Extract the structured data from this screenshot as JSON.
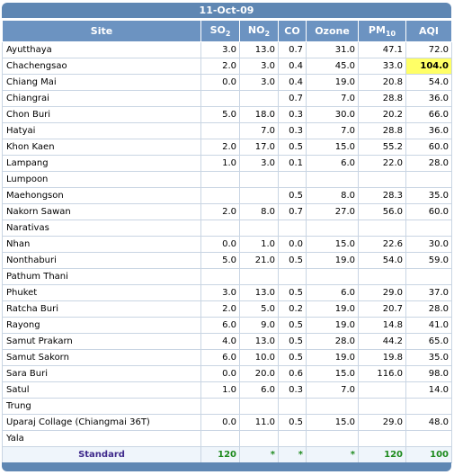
{
  "title": "11-Oct-09",
  "headers": {
    "site": "Site",
    "so2_main": "SO",
    "so2_sub": "2",
    "no2_main": "NO",
    "no2_sub": "2",
    "co": "CO",
    "ozone": "Ozone",
    "pm10_main": "PM",
    "pm10_sub": "10",
    "aqi": "AQI"
  },
  "highlight_color": "#ffff66",
  "rows": [
    {
      "site": "Ayutthaya",
      "so2": "3.0",
      "no2": "13.0",
      "co": "0.7",
      "ozone": "31.0",
      "pm10": "47.1",
      "aqi": "72.0"
    },
    {
      "site": "Chachengsao",
      "so2": "2.0",
      "no2": "3.0",
      "co": "0.4",
      "ozone": "45.0",
      "pm10": "33.0",
      "aqi": "104.0",
      "aqi_highlight": true
    },
    {
      "site": "Chiang Mai",
      "so2": "0.0",
      "no2": "3.0",
      "co": "0.4",
      "ozone": "19.0",
      "pm10": "20.8",
      "aqi": "54.0"
    },
    {
      "site": "Chiangrai",
      "so2": "",
      "no2": "",
      "co": "0.7",
      "ozone": "7.0",
      "pm10": "28.8",
      "aqi": "36.0"
    },
    {
      "site": "Chon Buri",
      "so2": "5.0",
      "no2": "18.0",
      "co": "0.3",
      "ozone": "30.0",
      "pm10": "20.2",
      "aqi": "66.0"
    },
    {
      "site": "Hatyai",
      "so2": "",
      "no2": "7.0",
      "co": "0.3",
      "ozone": "7.0",
      "pm10": "28.8",
      "aqi": "36.0"
    },
    {
      "site": "Khon Kaen",
      "so2": "2.0",
      "no2": "17.0",
      "co": "0.5",
      "ozone": "15.0",
      "pm10": "55.2",
      "aqi": "60.0"
    },
    {
      "site": "Lampang",
      "so2": "1.0",
      "no2": "3.0",
      "co": "0.1",
      "ozone": "6.0",
      "pm10": "22.0",
      "aqi": "28.0"
    },
    {
      "site": "Lumpoon",
      "so2": "",
      "no2": "",
      "co": "",
      "ozone": "",
      "pm10": "",
      "aqi": ""
    },
    {
      "site": "Maehongson",
      "so2": "",
      "no2": "",
      "co": "0.5",
      "ozone": "8.0",
      "pm10": "28.3",
      "aqi": "35.0"
    },
    {
      "site": "Nakorn Sawan",
      "so2": "2.0",
      "no2": "8.0",
      "co": "0.7",
      "ozone": "27.0",
      "pm10": "56.0",
      "aqi": "60.0"
    },
    {
      "site": "Narativas",
      "so2": "",
      "no2": "",
      "co": "",
      "ozone": "",
      "pm10": "",
      "aqi": ""
    },
    {
      "site": "Nhan",
      "so2": "0.0",
      "no2": "1.0",
      "co": "0.0",
      "ozone": "15.0",
      "pm10": "22.6",
      "aqi": "30.0"
    },
    {
      "site": "Nonthaburi",
      "so2": "5.0",
      "no2": "21.0",
      "co": "0.5",
      "ozone": "19.0",
      "pm10": "54.0",
      "aqi": "59.0"
    },
    {
      "site": "Pathum Thani",
      "so2": "",
      "no2": "",
      "co": "",
      "ozone": "",
      "pm10": "",
      "aqi": ""
    },
    {
      "site": "Phuket",
      "so2": "3.0",
      "no2": "13.0",
      "co": "0.5",
      "ozone": "6.0",
      "pm10": "29.0",
      "aqi": "37.0"
    },
    {
      "site": "Ratcha Buri",
      "so2": "2.0",
      "no2": "5.0",
      "co": "0.2",
      "ozone": "19.0",
      "pm10": "20.7",
      "aqi": "28.0"
    },
    {
      "site": "Rayong",
      "so2": "6.0",
      "no2": "9.0",
      "co": "0.5",
      "ozone": "19.0",
      "pm10": "14.8",
      "aqi": "41.0"
    },
    {
      "site": "Samut Prakarn",
      "so2": "4.0",
      "no2": "13.0",
      "co": "0.5",
      "ozone": "28.0",
      "pm10": "44.2",
      "aqi": "65.0"
    },
    {
      "site": "Samut Sakorn",
      "so2": "6.0",
      "no2": "10.0",
      "co": "0.5",
      "ozone": "19.0",
      "pm10": "19.8",
      "aqi": "35.0"
    },
    {
      "site": "Sara Buri",
      "so2": "0.0",
      "no2": "20.0",
      "co": "0.6",
      "ozone": "15.0",
      "pm10": "116.0",
      "aqi": "98.0"
    },
    {
      "site": "Satul",
      "so2": "1.0",
      "no2": "6.0",
      "co": "0.3",
      "ozone": "7.0",
      "pm10": "",
      "aqi": "14.0"
    },
    {
      "site": "Trung",
      "so2": "",
      "no2": "",
      "co": "",
      "ozone": "",
      "pm10": "",
      "aqi": ""
    },
    {
      "site": "Uparaj Collage (Chiangmai 36T)",
      "so2": "0.0",
      "no2": "11.0",
      "co": "0.5",
      "ozone": "15.0",
      "pm10": "29.0",
      "aqi": "48.0"
    },
    {
      "site": "Yala",
      "so2": "",
      "no2": "",
      "co": "",
      "ozone": "",
      "pm10": "",
      "aqi": ""
    }
  ],
  "standard": {
    "label": "Standard",
    "so2": "120",
    "no2": "*",
    "co": "*",
    "ozone": "*",
    "pm10": "120",
    "aqi": "100"
  }
}
